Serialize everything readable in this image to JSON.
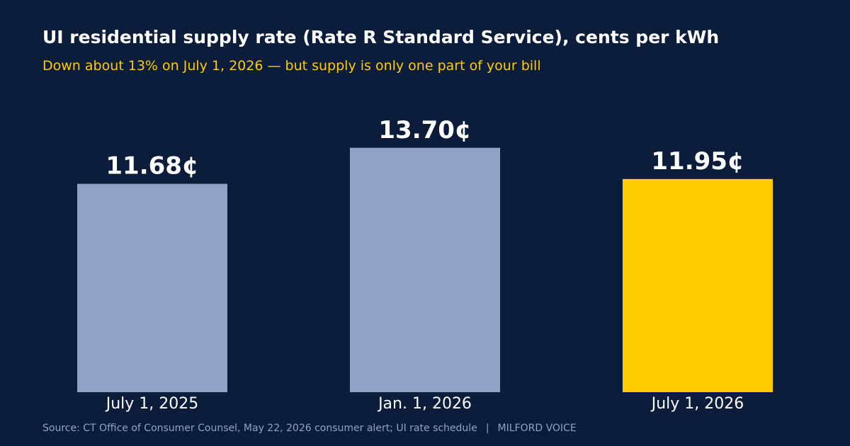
{
  "colors": {
    "background": "#0b1d3b",
    "title": "#ffffff",
    "subtitle": "#ffcc00",
    "bar_default": "#8fa3c6",
    "bar_highlight": "#ffcc00",
    "value_label": "#ffffff",
    "category_label": "#ffffff",
    "footer": "#8fa3c6"
  },
  "footer": {
    "source": "Source: CT Office of Consumer Counsel, May 22, 2026 consumer alert; UI rate schedule",
    "separator": "|",
    "brand": "MILFORD VOICE"
  },
  "chart_data": {
    "type": "bar",
    "title": "UI residential supply rate (Rate R Standard Service), cents per kWh",
    "subtitle": "Down about 13% on July 1, 2026 — but supply is only one part of your bill",
    "categories": [
      "July 1, 2025",
      "Jan. 1, 2026",
      "July 1, 2026"
    ],
    "values": [
      11.68,
      13.7,
      11.95
    ],
    "value_labels": [
      "11.68¢",
      "13.70¢",
      "11.95¢"
    ],
    "highlight": [
      false,
      false,
      true
    ],
    "xlabel": "",
    "ylabel": "",
    "ylim": [
      0,
      16
    ],
    "grid": false,
    "legend": "none"
  }
}
